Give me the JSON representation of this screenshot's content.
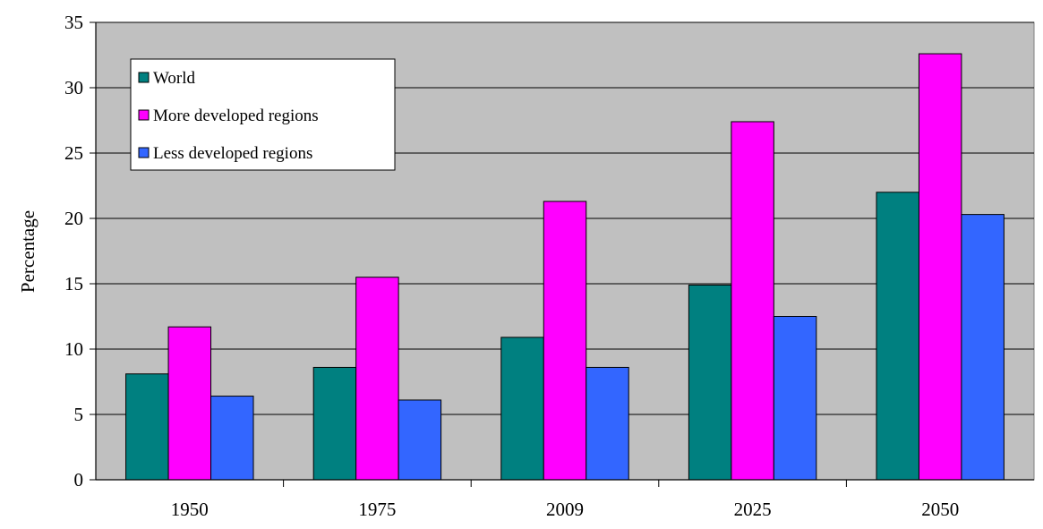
{
  "chart_data": {
    "type": "bar",
    "categories": [
      "1950",
      "1975",
      "2009",
      "2025",
      "2050"
    ],
    "series": [
      {
        "name": "World",
        "color": "#008080",
        "values": [
          8.1,
          8.6,
          10.9,
          14.9,
          22.0
        ]
      },
      {
        "name": "More developed regions",
        "color": "#ff00ff",
        "values": [
          11.7,
          15.5,
          21.3,
          27.4,
          32.6
        ]
      },
      {
        "name": "Less developed regions",
        "color": "#3366ff",
        "values": [
          6.4,
          6.1,
          8.6,
          12.5,
          20.3
        ]
      }
    ],
    "title": "",
    "xlabel": "",
    "ylabel": "Percentage",
    "ylim": [
      0,
      35
    ],
    "yticks": [
      0,
      5,
      10,
      15,
      20,
      25,
      30,
      35
    ],
    "grid": true,
    "legend": "top-left",
    "plot_background": "#c0c0c0"
  }
}
